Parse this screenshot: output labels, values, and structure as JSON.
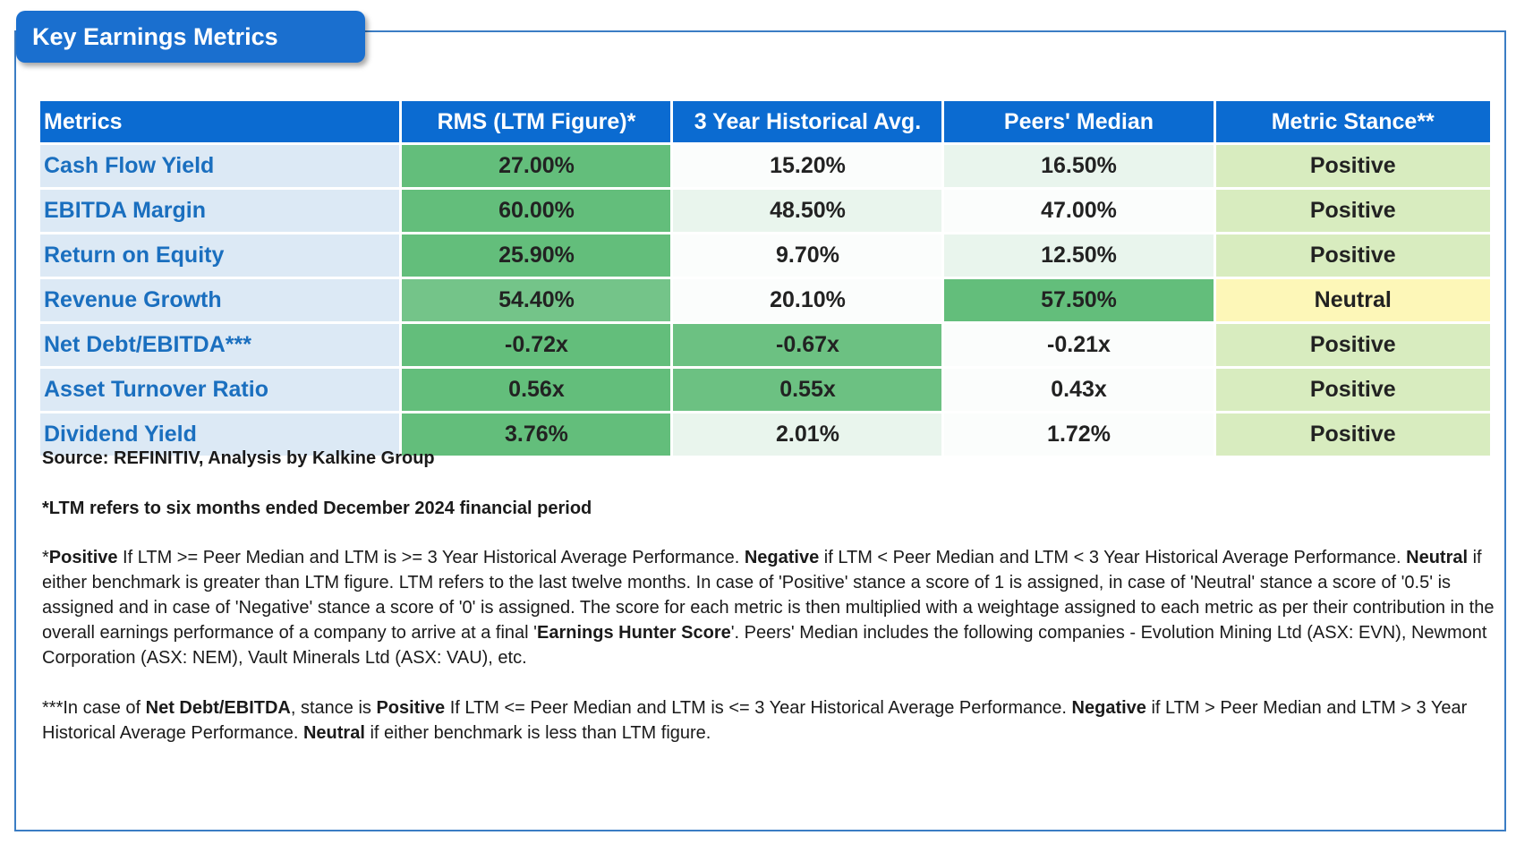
{
  "title": "Key Earnings Metrics",
  "colors": {
    "header_blue": "#0b6bd1",
    "metric_name_bg": "#dce9f5",
    "metric_name_text": "#1a6fbf",
    "green_dark": "#63be7b",
    "green_mid": "#78c68b",
    "green_light": "#e8f5ec",
    "white_cell": "#f8fbf9",
    "stance_positive": "#d8ecbf",
    "stance_neutral": "#fdf7b8"
  },
  "table": {
    "headers": [
      "Metrics",
      "RMS (LTM Figure)*",
      "3 Year Historical Avg.",
      "Peers' Median",
      "Metric Stance**"
    ],
    "rows": [
      {
        "metric": "Cash Flow Yield",
        "ltm": "27.00%",
        "hist": "15.20%",
        "peers": "16.50%",
        "stance": "Positive",
        "ltm_color": "#63be7b",
        "hist_color": "#fbfdfc",
        "peers_color": "#e9f5ed",
        "stance_color": "#d8ecbf"
      },
      {
        "metric": "EBITDA Margin",
        "ltm": "60.00%",
        "hist": "48.50%",
        "peers": "47.00%",
        "stance": "Positive",
        "ltm_color": "#63be7b",
        "hist_color": "#e9f5ed",
        "peers_color": "#fbfdfc",
        "stance_color": "#d8ecbf"
      },
      {
        "metric": "Return on Equity",
        "ltm": "25.90%",
        "hist": "9.70%",
        "peers": "12.50%",
        "stance": "Positive",
        "ltm_color": "#63be7b",
        "hist_color": "#fbfdfc",
        "peers_color": "#e9f5ed",
        "stance_color": "#d8ecbf"
      },
      {
        "metric": "Revenue Growth",
        "ltm": "54.40%",
        "hist": "20.10%",
        "peers": "57.50%",
        "stance": "Neutral",
        "ltm_color": "#74c489",
        "hist_color": "#fbfdfc",
        "peers_color": "#63be7b",
        "stance_color": "#fdf7b8"
      },
      {
        "metric": "Net Debt/EBITDA***",
        "ltm": "-0.72x",
        "hist": "-0.67x",
        "peers": "-0.21x",
        "stance": "Positive",
        "ltm_color": "#63be7b",
        "hist_color": "#6cc182",
        "peers_color": "#fbfdfc",
        "stance_color": "#d8ecbf"
      },
      {
        "metric": "Asset Turnover Ratio",
        "ltm": "0.56x",
        "hist": "0.55x",
        "peers": "0.43x",
        "stance": "Positive",
        "ltm_color": "#63be7b",
        "hist_color": "#6cc182",
        "peers_color": "#fbfdfc",
        "stance_color": "#d8ecbf"
      },
      {
        "metric": "Dividend Yield",
        "ltm": "3.76%",
        "hist": "2.01%",
        "peers": "1.72%",
        "stance": "Positive",
        "ltm_color": "#63be7b",
        "hist_color": "#e9f5ed",
        "peers_color": "#fbfdfc",
        "stance_color": "#d8ecbf"
      }
    ]
  },
  "notes": {
    "source": "Source: REFINITIV, Analysis by Kalkine Group",
    "ltm": "*LTM refers to six months ended December 2024 financial period",
    "p1_a": "*",
    "p1_b": "Positive",
    "p1_c": " If LTM >= Peer Median and LTM is >= 3 Year Historical Average Performance. ",
    "p1_d": "Negative",
    "p1_e": " if LTM < Peer Median and LTM < 3 Year Historical Average Performance. ",
    "p1_f": "Neutral",
    "p1_g": " if either benchmark is greater than LTM figure. LTM refers to the last twelve months. In case of 'Positive' stance a score of 1 is assigned, in case of 'Neutral' stance a score of '0.5' is assigned and in case of 'Negative' stance a score of '0' is assigned. The score for each metric is then multiplied with a weightage assigned to each metric as per their contribution in the overall earnings performance of a company to arrive at a final '",
    "p1_h": "Earnings Hunter Score",
    "p1_i": "'. Peers' Median includes the following companies - Evolution Mining Ltd (ASX: EVN), Newmont Corporation (ASX: NEM), Vault Minerals Ltd (ASX: VAU), etc.",
    "p2_a": "***In case of ",
    "p2_b": "Net Debt/EBITDA",
    "p2_c": ", stance is ",
    "p2_d": "Positive",
    "p2_e": " If LTM <= Peer Median and LTM is <= 3 Year Historical Average Performance. ",
    "p2_f": "Negative",
    "p2_g": " if LTM > Peer Median and LTM > 3 Year Historical Average Performance. ",
    "p2_h": "Neutral",
    "p2_i": " if either benchmark is less than LTM figure."
  }
}
